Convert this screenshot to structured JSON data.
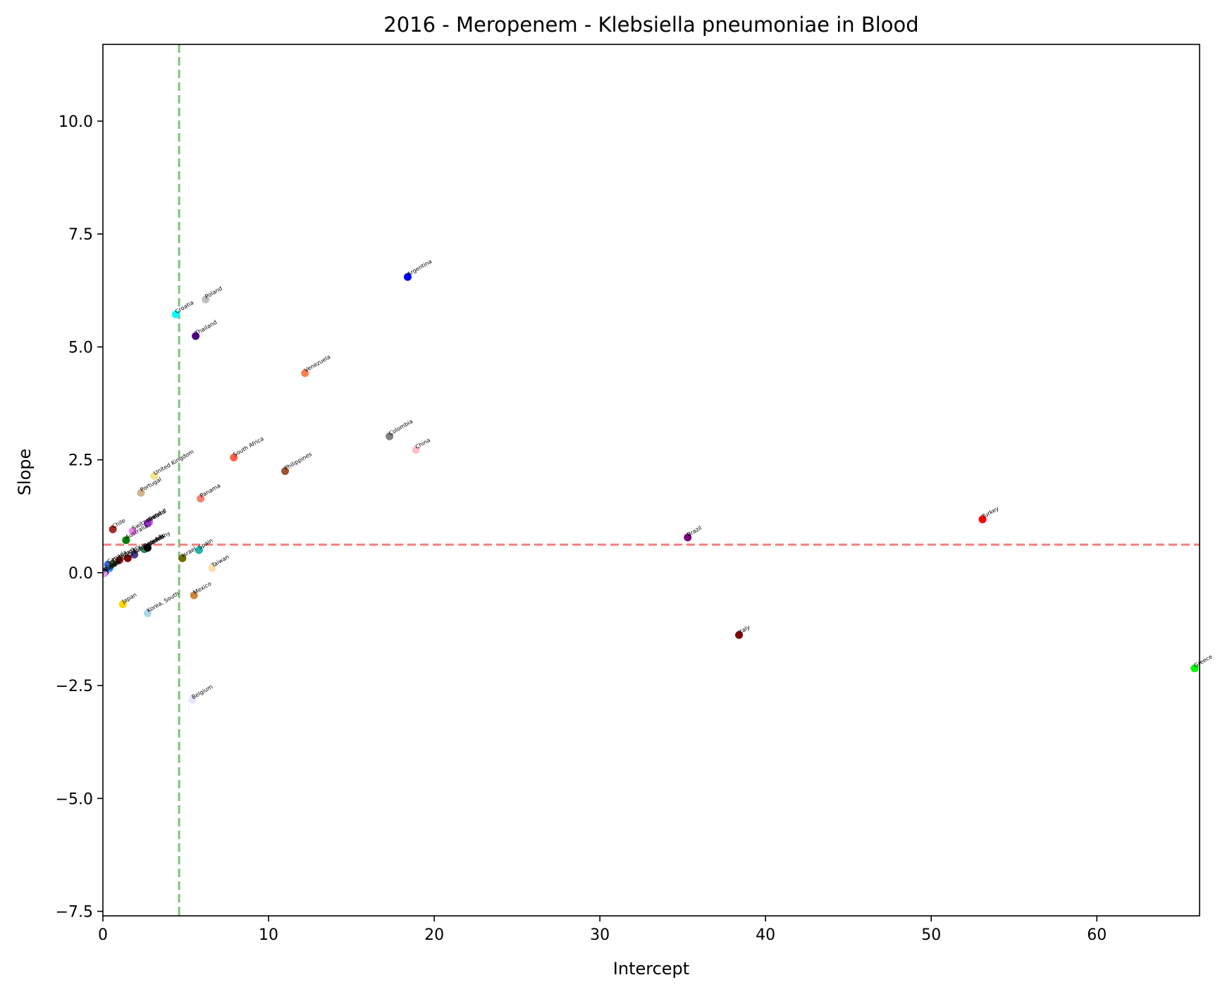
{
  "chart_data": {
    "type": "scatter",
    "title": "2016 - Meropenem - Klebsiella pneumoniae in Blood",
    "xlabel": "Intercept",
    "ylabel": "Slope",
    "xlim": [
      0,
      66.2
    ],
    "ylim": [
      -7.6,
      11.7
    ],
    "x_ticks": [
      0,
      10,
      20,
      30,
      40,
      50,
      60
    ],
    "x_tick_labels": [
      "0",
      "10",
      "20",
      "30",
      "40",
      "50",
      "60"
    ],
    "y_ticks": [
      -7.5,
      -5.0,
      -2.5,
      0.0,
      2.5,
      5.0,
      7.5,
      10.0
    ],
    "y_tick_labels": [
      "−7.5",
      "−5.0",
      "−2.5",
      "0.0",
      "2.5",
      "5.0",
      "7.5",
      "10.0"
    ],
    "grid": false,
    "reference_lines": [
      {
        "orientation": "vertical",
        "value": 4.6,
        "color": "#7cc47c",
        "style": "dashed"
      },
      {
        "orientation": "horizontal",
        "value": 0.62,
        "color": "#f47f7f",
        "style": "dashed"
      }
    ],
    "points": [
      {
        "label": "Argentina",
        "x": 18.4,
        "y": 6.55,
        "color": "#0000ff"
      },
      {
        "label": "Croatia",
        "x": 4.4,
        "y": 5.72,
        "color": "#00ffff"
      },
      {
        "label": "Poland",
        "x": 6.2,
        "y": 6.05,
        "color": "#c0c0c0"
      },
      {
        "label": "Thailand",
        "x": 5.6,
        "y": 5.24,
        "color": "#4b0082"
      },
      {
        "label": "Venezuela",
        "x": 12.2,
        "y": 4.42,
        "color": "#ff7f50"
      },
      {
        "label": "Colombia",
        "x": 17.3,
        "y": 3.02,
        "color": "#808080"
      },
      {
        "label": "China",
        "x": 18.9,
        "y": 2.72,
        "color": "#ffc0cb"
      },
      {
        "label": "South Africa",
        "x": 7.9,
        "y": 2.55,
        "color": "#ff6347"
      },
      {
        "label": "Philippines",
        "x": 11.0,
        "y": 2.25,
        "color": "#a0522d"
      },
      {
        "label": "United Kingdom",
        "x": 3.1,
        "y": 2.14,
        "color": "#f0e68c"
      },
      {
        "label": "Portugal",
        "x": 2.3,
        "y": 1.77,
        "color": "#d2b48c"
      },
      {
        "label": "Panama",
        "x": 5.9,
        "y": 1.64,
        "color": "#fa8072"
      },
      {
        "label": "Ireland",
        "x": 2.8,
        "y": 1.12,
        "color": "#da70d6"
      },
      {
        "label": "Finland",
        "x": 2.7,
        "y": 1.09,
        "color": "#9932cc"
      },
      {
        "label": "Switzerland",
        "x": 1.8,
        "y": 0.92,
        "color": "#ee82ee"
      },
      {
        "label": "Chile",
        "x": 0.6,
        "y": 0.96,
        "color": "#a52a2a"
      },
      {
        "label": "Australia",
        "x": 1.4,
        "y": 0.72,
        "color": "#008000"
      },
      {
        "label": "Sweden",
        "x": 2.5,
        "y": 0.52,
        "color": "#2e8b57"
      },
      {
        "label": "Germany",
        "x": 2.7,
        "y": 0.55,
        "color": "#000000"
      },
      {
        "label": "Israel",
        "x": 4.8,
        "y": 0.32,
        "color": "#6b6b00"
      },
      {
        "label": "Spain",
        "x": 5.8,
        "y": 0.5,
        "color": "#20b2aa"
      },
      {
        "label": "Taiwan",
        "x": 6.6,
        "y": 0.1,
        "color": "#ffdead"
      },
      {
        "label": "Brazil",
        "x": 35.3,
        "y": 0.78,
        "color": "#800080"
      },
      {
        "label": "Turkey",
        "x": 53.1,
        "y": 1.18,
        "color": "#ff0000"
      },
      {
        "label": "Japan",
        "x": 1.2,
        "y": -0.7,
        "color": "#ffd700"
      },
      {
        "label": "Korea, South",
        "x": 2.7,
        "y": -0.9,
        "color": "#add8e6"
      },
      {
        "label": "Mexico",
        "x": 5.5,
        "y": -0.5,
        "color": "#cd853f"
      },
      {
        "label": "Italy",
        "x": 38.4,
        "y": -1.38,
        "color": "#800000"
      },
      {
        "label": "Greece",
        "x": 65.9,
        "y": -2.12,
        "color": "#00ff00"
      },
      {
        "label": "Belgium",
        "x": 5.4,
        "y": -2.82,
        "color": "#e6e6fa"
      },
      {
        "label": "Canada",
        "x": 0.3,
        "y": 0.18,
        "color": "#4169e1"
      },
      {
        "label": "Austria",
        "x": 0.4,
        "y": 0.1,
        "color": "#1e90ff"
      },
      {
        "label": "Denmark",
        "x": 0.6,
        "y": 0.2,
        "color": "#556b2f"
      },
      {
        "label": "Hungary",
        "x": 1.0,
        "y": 0.28,
        "color": "#b22222"
      },
      {
        "label": "Czech Republic",
        "x": 1.5,
        "y": 0.32,
        "color": "#8b0000"
      },
      {
        "label": "Netherlands",
        "x": 1.9,
        "y": 0.4,
        "color": "#483d8b"
      },
      {
        "label": "France",
        "x": 0.2,
        "y": 0.05,
        "color": "#6495ed"
      },
      {
        "label": "Russia",
        "x": 0.1,
        "y": 0.0,
        "color": "#000080"
      },
      {
        "label": "Kuwait",
        "x": 0.05,
        "y": -0.02,
        "color": "#dda0dd"
      }
    ]
  }
}
